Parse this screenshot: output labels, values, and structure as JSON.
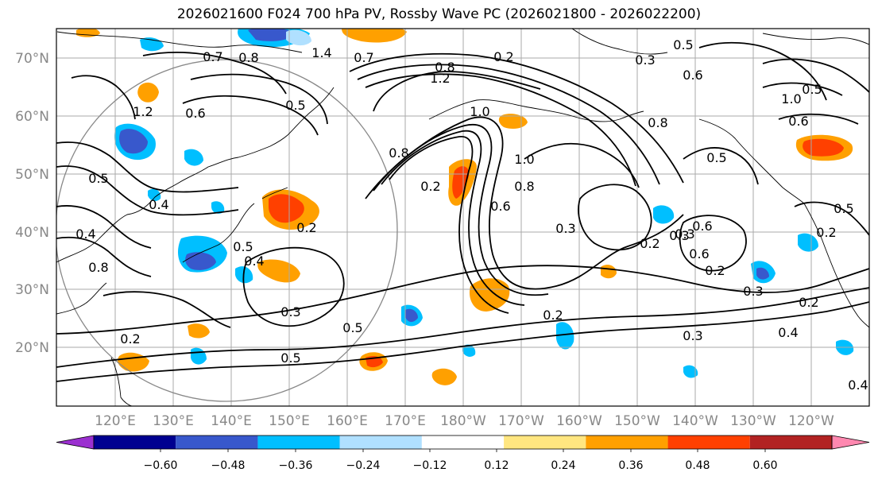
{
  "title": "2026021600 F024 700 hPa PV, Rossby Wave PC (2026021800 - 2026022200)",
  "lat_labels": [
    "70°N",
    "60°N",
    "50°N",
    "40°N",
    "30°N",
    "20°N"
  ],
  "lon_labels": [
    "120°E",
    "130°E",
    "140°E",
    "150°E",
    "160°E",
    "170°E",
    "180°W",
    "170°W",
    "160°W",
    "150°W",
    "140°W",
    "130°W",
    "120°W"
  ],
  "colorbar": {
    "colors": [
      "#9b30d0",
      "#000090",
      "#3858cc",
      "#00bfff",
      "#b0e0ff",
      "#ffffff",
      "#ffe680",
      "#ffa000",
      "#ff4000",
      "#b22222",
      "#ff88b0"
    ],
    "ticks": [
      "−0.60",
      "−0.48",
      "−0.36",
      "−0.24",
      "−0.12",
      "0.12",
      "0.24",
      "0.36",
      "0.48",
      "0.60"
    ]
  },
  "contour_labels": [
    "0.7",
    "0.8",
    "1.4",
    "0.7",
    "0.2",
    "0.3",
    "0.5",
    "0.8",
    "1.2",
    "0.6",
    "1.0",
    "0.6",
    "0.5",
    "1.2",
    "1.0",
    "0.8",
    "0.2",
    "0.8",
    "1.0",
    "0.6",
    "0.8",
    "0.4",
    "0.5",
    "0.4",
    "0.8",
    "0.2",
    "0.5",
    "0.5",
    "0.5",
    "0.6",
    "0.6",
    "0.4",
    "0.3",
    "0.2",
    "0.3",
    "0.3",
    "0.5",
    "0.2",
    "0.5",
    "0.6",
    "0.3",
    "0.2",
    "0.3",
    "0.2",
    "0.4",
    "0.2",
    "0.5",
    "0.4",
    "0.2",
    "0.3"
  ],
  "shading_colors": {
    "positive_light": "#ffe680",
    "positive": "#ffa000",
    "positive_strong": "#ff4000",
    "negative_light": "#b0e0ff",
    "negative": "#00bfff",
    "negative_strong": "#3858cc"
  }
}
